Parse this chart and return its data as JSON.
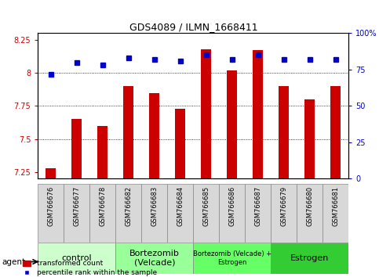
{
  "title": "GDS4089 / ILMN_1668411",
  "samples": [
    "GSM766676",
    "GSM766677",
    "GSM766678",
    "GSM766682",
    "GSM766683",
    "GSM766684",
    "GSM766685",
    "GSM766686",
    "GSM766687",
    "GSM766679",
    "GSM766680",
    "GSM766681"
  ],
  "bar_values": [
    7.28,
    7.65,
    7.6,
    7.9,
    7.85,
    7.73,
    8.18,
    8.02,
    8.17,
    7.9,
    7.8,
    7.9
  ],
  "percentile_values": [
    72,
    80,
    78,
    83,
    82,
    81,
    85,
    82,
    85,
    82,
    82,
    82
  ],
  "bar_color": "#CC0000",
  "percentile_color": "#0000CC",
  "ylim_left": [
    7.2,
    8.3
  ],
  "ylim_right": [
    0,
    100
  ],
  "yticks_left": [
    7.25,
    7.5,
    7.75,
    8.0,
    8.25
  ],
  "yticks_right": [
    0,
    25,
    50,
    75,
    100
  ],
  "ytick_labels_left": [
    "7.25",
    "7.5",
    "7.75",
    "8",
    "8.25"
  ],
  "ytick_labels_right": [
    "0",
    "25",
    "50",
    "75",
    "100%"
  ],
  "group_colors": [
    "#ccffcc",
    "#99ff99",
    "#66ff66",
    "#33cc33"
  ],
  "group_labels": [
    "control",
    "Bortezomib\n(Velcade)",
    "Bortezomib (Velcade) +\nEstrogen",
    "Estrogen"
  ],
  "group_label_sizes": [
    8,
    8,
    6,
    8
  ],
  "group_starts": [
    0,
    3,
    6,
    9
  ],
  "group_ends": [
    3,
    6,
    9,
    12
  ],
  "agent_label": "agent",
  "legend_red": "transformed count",
  "legend_blue": "percentile rank within the sample",
  "sample_bg": "#d8d8d8",
  "bar_width": 0.4
}
